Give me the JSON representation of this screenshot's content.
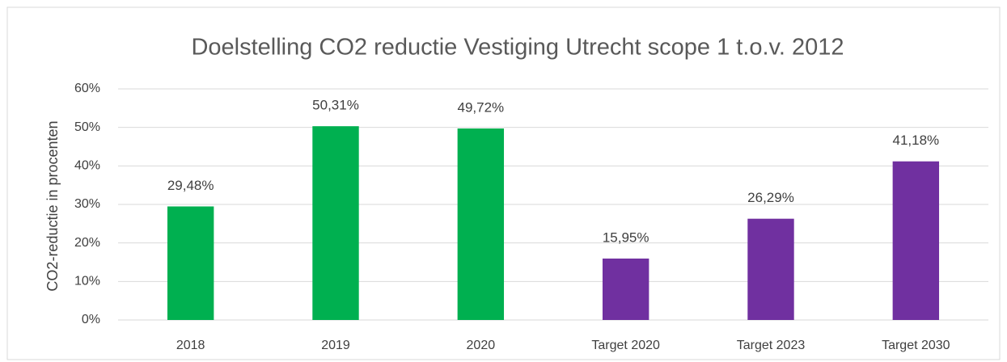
{
  "chart_data": {
    "type": "bar",
    "title": "Doelstelling CO2 reductie Vestiging Utrecht scope 1 t.o.v. 2012",
    "y_label": "CO2-reductie in procenten",
    "categories": [
      "2018",
      "2019",
      "2020",
      "Target 2020",
      "Target 2023",
      "Target 2030"
    ],
    "values": [
      29.48,
      50.31,
      49.72,
      15.95,
      26.29,
      41.18
    ],
    "value_labels": [
      "29,48%",
      "50,31%",
      "49,72%",
      "15,95%",
      "26,29%",
      "41,18%"
    ],
    "colors": [
      "#00b050",
      "#00b050",
      "#00b050",
      "#7030a0",
      "#7030a0",
      "#7030a0"
    ],
    "ylim": [
      0,
      60
    ],
    "yticks": [
      {
        "value": 0,
        "label": "0%"
      },
      {
        "value": 10,
        "label": "10%"
      },
      {
        "value": 20,
        "label": "20%"
      },
      {
        "value": 30,
        "label": "30%"
      },
      {
        "value": 40,
        "label": "40%"
      },
      {
        "value": 50,
        "label": "50%"
      },
      {
        "value": 60,
        "label": "60%"
      }
    ],
    "grid": true
  }
}
